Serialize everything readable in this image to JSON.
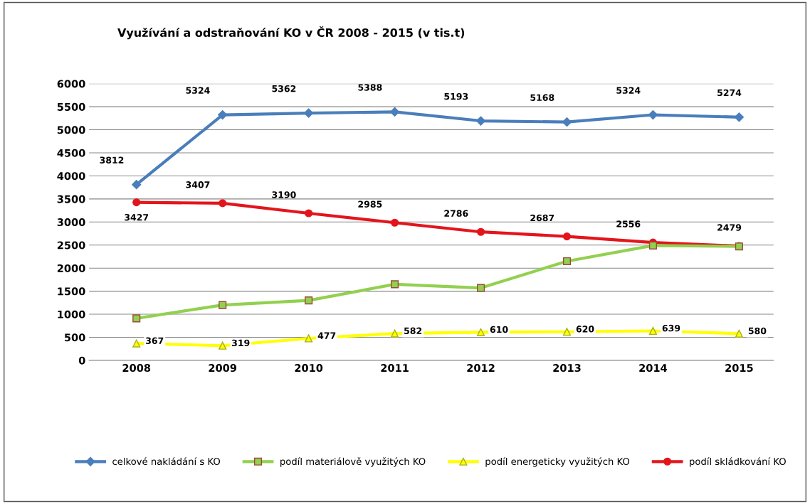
{
  "chart_data": {
    "type": "line",
    "title": "Využívání a odstraňování KO v ČR 2008 - 2015 (v tis.t)",
    "categories": [
      "2008",
      "2009",
      "2010",
      "2011",
      "2012",
      "2013",
      "2014",
      "2015"
    ],
    "series": [
      {
        "name": "celkové nakládání s KO",
        "color": "#4a7ebb",
        "marker": "diamond",
        "values": [
          3812,
          5324,
          5362,
          5388,
          5193,
          5168,
          5324,
          5274
        ],
        "value_labels": [
          "3812",
          "5324",
          "5362",
          "5388",
          "5193",
          "5168",
          "5324",
          "5274"
        ]
      },
      {
        "name": "podíl materiálově využitých KO",
        "color": "#92d050",
        "marker": "square",
        "values": [
          910,
          1200,
          1300,
          1650,
          1570,
          2150,
          2490,
          2470
        ]
      },
      {
        "name": "podíl energeticky využitých KO",
        "color": "#ffff00",
        "marker": "triangle",
        "values": [
          367,
          319,
          477,
          582,
          610,
          620,
          639,
          580
        ],
        "value_labels": [
          "367",
          "319",
          "477",
          "582",
          "610",
          "620",
          "639",
          "580"
        ]
      },
      {
        "name": "podíl skládkování KO",
        "color": "#e3151c",
        "marker": "circle",
        "values": [
          3427,
          3407,
          3190,
          2985,
          2786,
          2687,
          2556,
          2479
        ],
        "value_labels": [
          "3427",
          "3407",
          "3190",
          "2985",
          "2786",
          "2687",
          "2556",
          "2479"
        ]
      }
    ],
    "ylim": [
      0,
      6000
    ],
    "yticks": [
      0,
      500,
      1000,
      1500,
      2000,
      2500,
      3000,
      3500,
      4000,
      4500,
      5000,
      5500,
      6000
    ],
    "grid": "y",
    "legend": "bottom"
  }
}
